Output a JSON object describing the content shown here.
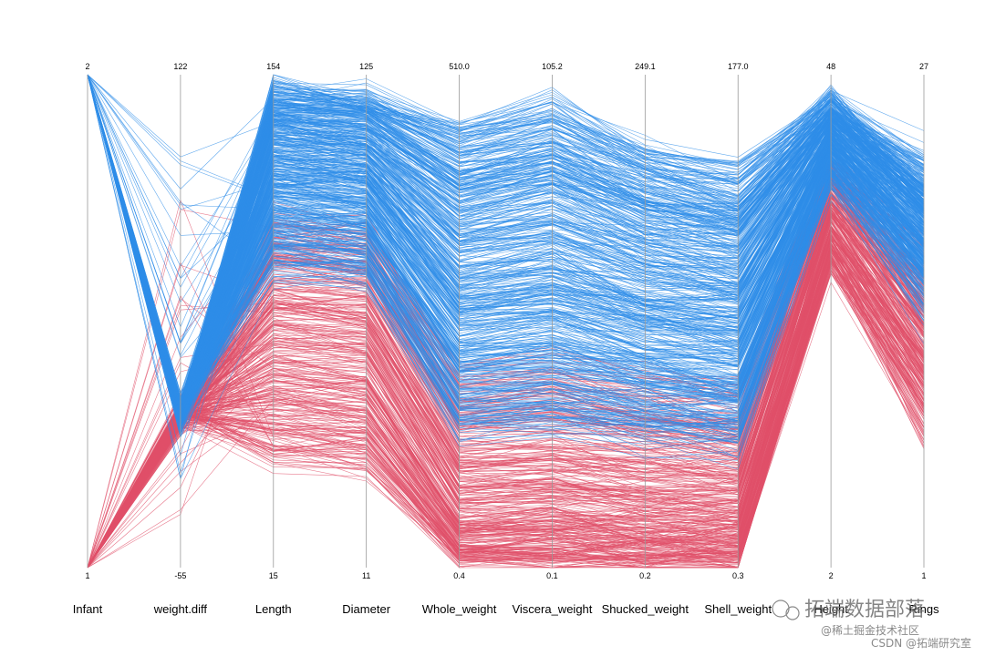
{
  "chart_data": {
    "type": "parallel_coordinates",
    "axes": [
      {
        "name": "Infant",
        "max": "2",
        "min": "1"
      },
      {
        "name": "weight.diff",
        "max": "122",
        "min": "-55"
      },
      {
        "name": "Length",
        "max": "154",
        "min": "15"
      },
      {
        "name": "Diameter",
        "max": "125",
        "min": "11"
      },
      {
        "name": "Whole_weight",
        "max": "510.0",
        "min": "0.4"
      },
      {
        "name": "Viscera_weight",
        "max": "105.2",
        "min": "0.1"
      },
      {
        "name": "Shucked_weight",
        "max": "249.1",
        "min": "0.2"
      },
      {
        "name": "Shell_weight",
        "max": "177.0",
        "min": "0.3"
      },
      {
        "name": "Height",
        "max": "48",
        "min": "2"
      },
      {
        "name": "Rings",
        "max": "27",
        "min": "1"
      }
    ],
    "series_colors": {
      "infant_2": "#2f8ee8",
      "infant_1": "#e0506a"
    },
    "approx_line_count": 900
  },
  "watermark": {
    "brand": "拓端数据部落",
    "community": "@稀土掘金技术社区",
    "csdn": "CSDN @拓端研究室"
  }
}
